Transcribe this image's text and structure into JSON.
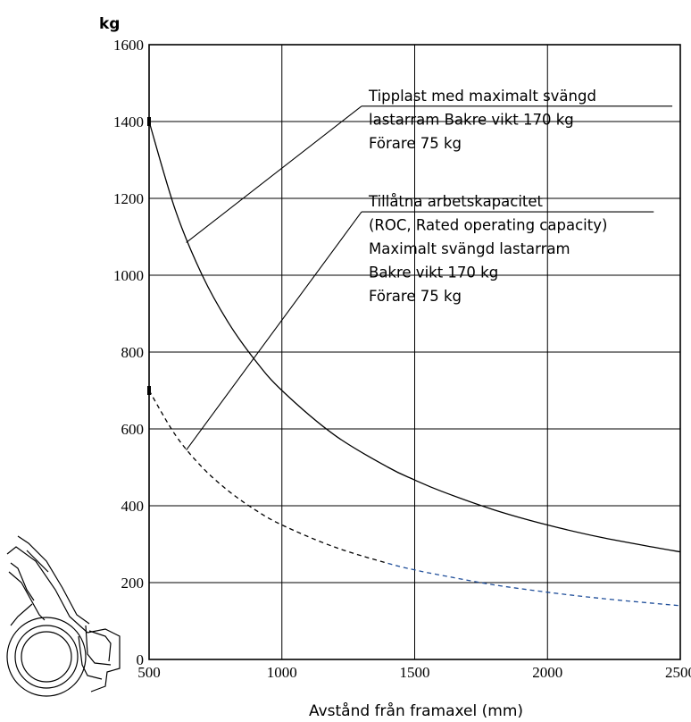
{
  "chart_data": {
    "type": "line",
    "xlabel": "Avstånd från framaxel (mm)",
    "ylabel": "kg",
    "xlim": [
      500,
      2500
    ],
    "ylim": [
      0,
      1600
    ],
    "xticks": [
      500,
      1000,
      1500,
      2000,
      2500
    ],
    "yticks": [
      0,
      200,
      400,
      600,
      800,
      1000,
      1200,
      1400,
      1600
    ],
    "grid": true,
    "series": [
      {
        "style": "solid",
        "color": "#000000",
        "x": [
          500,
          600,
          700,
          800,
          900,
          1000,
          1200,
          1400,
          1500,
          1600,
          1800,
          2000,
          2200,
          2400,
          2500
        ],
        "y": [
          1400,
          1167,
          1000,
          875,
          778,
          700,
          583,
          500,
          467,
          438,
          389,
          350,
          318,
          292,
          280
        ]
      },
      {
        "style": "dashed",
        "color": "#000000",
        "color_right_part": "#1f4e9a",
        "x": [
          500,
          600,
          700,
          800,
          900,
          1000,
          1200,
          1400,
          1500,
          1600,
          1800,
          2000,
          2200,
          2400,
          2500
        ],
        "y": [
          700,
          583,
          500,
          438,
          389,
          350,
          292,
          250,
          233,
          219,
          194,
          175,
          159,
          146,
          140
        ]
      }
    ],
    "annotations": [
      {
        "lines": [
          "Tipplast med maximalt svängd",
          "lastarram Bakre vikt 170 kg",
          "Förare 75 kg"
        ],
        "points_to": "solid",
        "pointer_from": [
          1300,
          1440
        ],
        "pointer_to": [
          640,
          1085
        ],
        "rule_to_x": 2470
      },
      {
        "lines": [
          "Tillåtna arbetskapacitet",
          "(ROC, Rated operating capacity)",
          "Maximalt svängd lastarram",
          "Bakre vikt 170 kg",
          "Förare 75 kg"
        ],
        "points_to": "dashed",
        "pointer_from": [
          1300,
          1165
        ],
        "pointer_to": [
          640,
          545
        ],
        "rule_to_x": 2400
      }
    ]
  }
}
